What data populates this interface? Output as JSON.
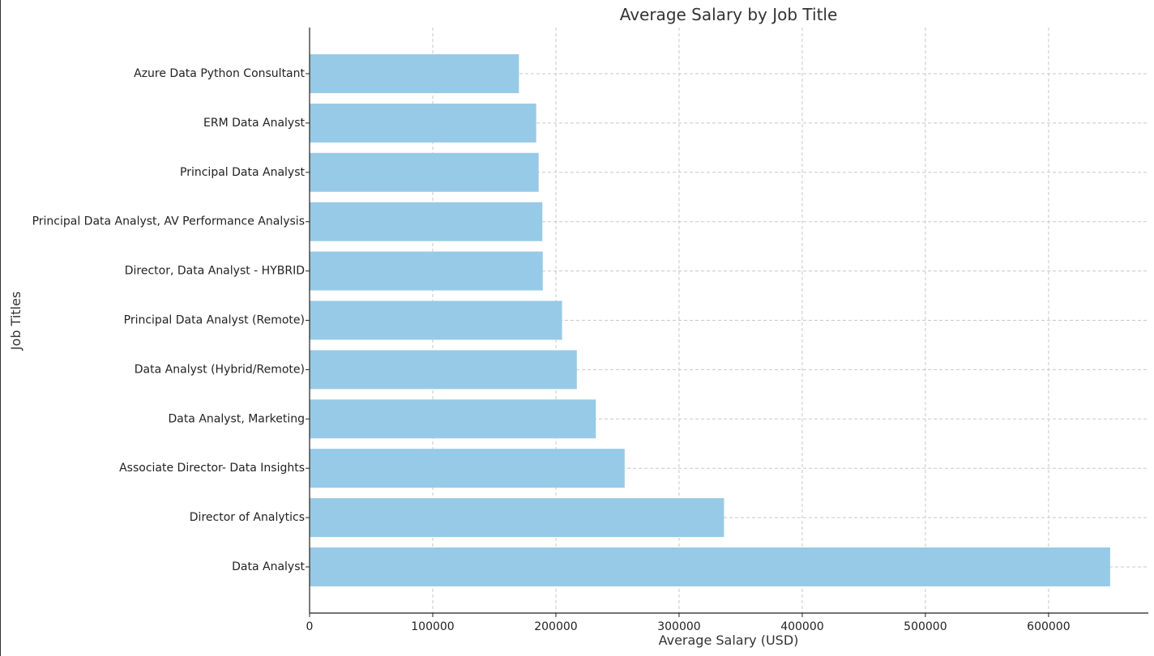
{
  "chart_data": {
    "type": "bar",
    "orientation": "horizontal",
    "title": "Average Salary by Job Title",
    "xlabel": "Average Salary (USD)",
    "ylabel": "Job Titles",
    "categories": [
      "Data Analyst",
      "Director of Analytics",
      "Associate Director- Data Insights",
      "Data Analyst, Marketing",
      "Data Analyst (Hybrid/Remote)",
      "Principal Data Analyst (Remote)",
      "Director, Data Analyst - HYBRID",
      "Principal Data Analyst, AV Performance Analysis",
      "Principal Data Analyst",
      "ERM Data Analyst",
      "Azure Data Python Consultant"
    ],
    "values": [
      650000,
      336500,
      255830,
      232423,
      217000,
      205000,
      189309,
      189000,
      186000,
      184000,
      170000
    ],
    "xlim": [
      0,
      681000
    ],
    "xticks": [
      0,
      100000,
      200000,
      300000,
      400000,
      500000,
      600000
    ],
    "xtick_labels": [
      "0",
      "100000",
      "200000",
      "300000",
      "400000",
      "500000",
      "600000"
    ],
    "bar_color": "#97cae6",
    "grid": true
  }
}
